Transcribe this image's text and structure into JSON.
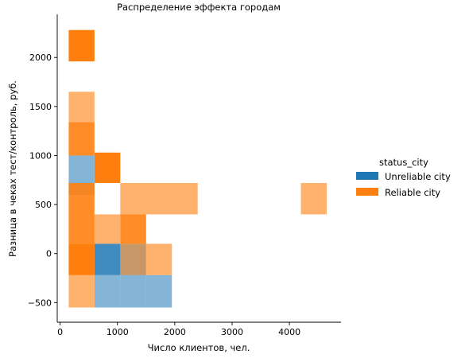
{
  "chart_data": {
    "type": "heatmap",
    "title": "Распределение эффекта городам",
    "xlabel": "Число клиентов, чел.",
    "ylabel": "Разница в чеках тест/контроль, руб.",
    "xlim": [
      -50,
      4900
    ],
    "ylim": [
      -700,
      2440
    ],
    "x_ticks": [
      0,
      1000,
      2000,
      3000,
      4000
    ],
    "y_ticks": [
      -500,
      0,
      500,
      1000,
      1500,
      2000
    ],
    "x_tick_labels": [
      "0",
      "1000",
      "2000",
      "3000",
      "4000"
    ],
    "y_tick_labels": [
      "−500",
      "0",
      "500",
      "1000",
      "1500",
      "2000"
    ],
    "grid": false,
    "legend": {
      "title": "status_city",
      "placement": "right",
      "entries": [
        {
          "name": "Unreliable city",
          "color": "#1f77b4"
        },
        {
          "name": "Reliable city",
          "color": "#ff7f0e"
        }
      ]
    },
    "series": [
      {
        "name": "Unreliable city",
        "color": "#1f77b4",
        "cells": [
          {
            "x0": 150,
            "x1": 600,
            "y0": 600,
            "y1": 1000,
            "intensity": 0.55
          },
          {
            "x0": 600,
            "x1": 1050,
            "y0": -220,
            "y1": 100,
            "intensity": 0.85
          },
          {
            "x0": 1050,
            "x1": 1500,
            "y0": -220,
            "y1": 100,
            "intensity": 0.55
          },
          {
            "x0": 600,
            "x1": 1050,
            "y0": -550,
            "y1": -220,
            "intensity": 0.55
          },
          {
            "x0": 1050,
            "x1": 1500,
            "y0": -550,
            "y1": -220,
            "intensity": 0.55
          },
          {
            "x0": 1500,
            "x1": 1950,
            "y0": -550,
            "y1": -220,
            "intensity": 0.55
          }
        ]
      },
      {
        "name": "Reliable city",
        "color": "#ff7f0e",
        "cells": [
          {
            "x0": 150,
            "x1": 600,
            "y0": 1960,
            "y1": 2280,
            "intensity": 1.0
          },
          {
            "x0": 150,
            "x1": 600,
            "y0": 1340,
            "y1": 1650,
            "intensity": 0.6
          },
          {
            "x0": 150,
            "x1": 600,
            "y0": 1000,
            "y1": 1340,
            "intensity": 0.9
          },
          {
            "x0": 600,
            "x1": 1050,
            "y0": 720,
            "y1": 1030,
            "intensity": 1.0
          },
          {
            "x0": 150,
            "x1": 600,
            "y0": 100,
            "y1": 720,
            "intensity": 0.9
          },
          {
            "x0": 1050,
            "x1": 2400,
            "y0": 400,
            "y1": 720,
            "intensity": 0.6
          },
          {
            "x0": 4200,
            "x1": 4650,
            "y0": 400,
            "y1": 720,
            "intensity": 0.6
          },
          {
            "x0": 600,
            "x1": 1050,
            "y0": 100,
            "y1": 400,
            "intensity": 0.6
          },
          {
            "x0": 1050,
            "x1": 1500,
            "y0": 100,
            "y1": 400,
            "intensity": 0.9
          },
          {
            "x0": 150,
            "x1": 600,
            "y0": -220,
            "y1": 100,
            "intensity": 1.0
          },
          {
            "x0": 1050,
            "x1": 1500,
            "y0": -220,
            "y1": 100,
            "intensity": 0.55
          },
          {
            "x0": 1500,
            "x1": 1950,
            "y0": -220,
            "y1": 100,
            "intensity": 0.6
          },
          {
            "x0": 150,
            "x1": 600,
            "y0": -550,
            "y1": -220,
            "intensity": 0.6
          }
        ]
      }
    ]
  }
}
